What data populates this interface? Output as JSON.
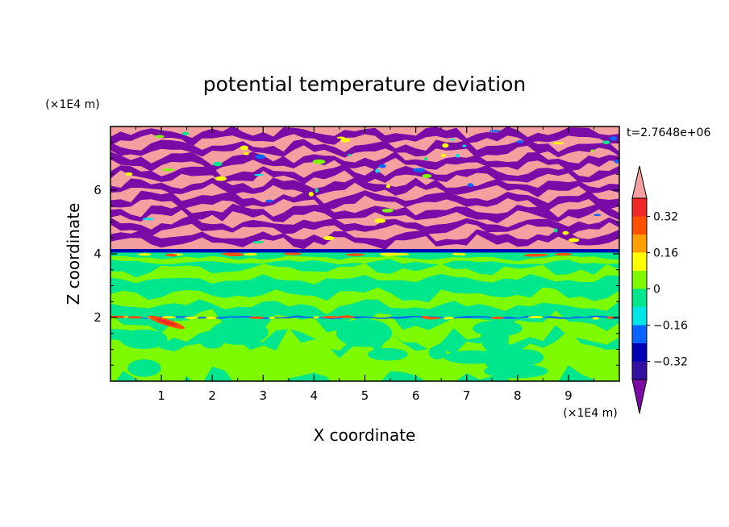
{
  "chart_data": {
    "type": "heatmap",
    "title": "potential temperature deviation",
    "xlabel": "X coordinate",
    "ylabel": "Z coordinate",
    "x_unit": "(×1E4 m)",
    "y_unit": "(×1E4 m)",
    "time_label": "t=2.7648e+06",
    "xlim": [
      0,
      10
    ],
    "ylim": [
      0,
      8
    ],
    "x_ticks": [
      1,
      2,
      3,
      4,
      5,
      6,
      7,
      8,
      9
    ],
    "y_ticks": [
      2,
      4,
      6
    ],
    "colorbar": {
      "levels": [
        -0.4,
        -0.32,
        -0.24,
        -0.16,
        -0.08,
        0,
        0.08,
        0.16,
        0.24,
        0.32,
        0.4
      ],
      "labeled_levels": [
        0.32,
        0.16,
        0,
        -0.16,
        -0.32
      ],
      "labels": [
        "0.32",
        "0.16",
        "0",
        "−0.16",
        "−0.32"
      ],
      "colors": [
        "#7a0ba6",
        "#3210a0",
        "#0000b4",
        "#0a64ff",
        "#00e6e6",
        "#00e68c",
        "#7dfa00",
        "#ffff00",
        "#ffa000",
        "#ff5000",
        "#f02828",
        "#f5a0a0"
      ],
      "extend": "both"
    },
    "fields": {
      "upper_band_z": [
        4.15,
        8.0
      ],
      "upper_band_colors": [
        "#f5a0a0",
        "#7a0ba6"
      ],
      "interface_z": 4.1,
      "interface_color": "#0000b4",
      "lower_band_z": [
        0,
        4.1
      ],
      "lower_band_colors": [
        "#00e68c",
        "#7dfa00"
      ],
      "thin_layer_z": 2.0
    }
  }
}
